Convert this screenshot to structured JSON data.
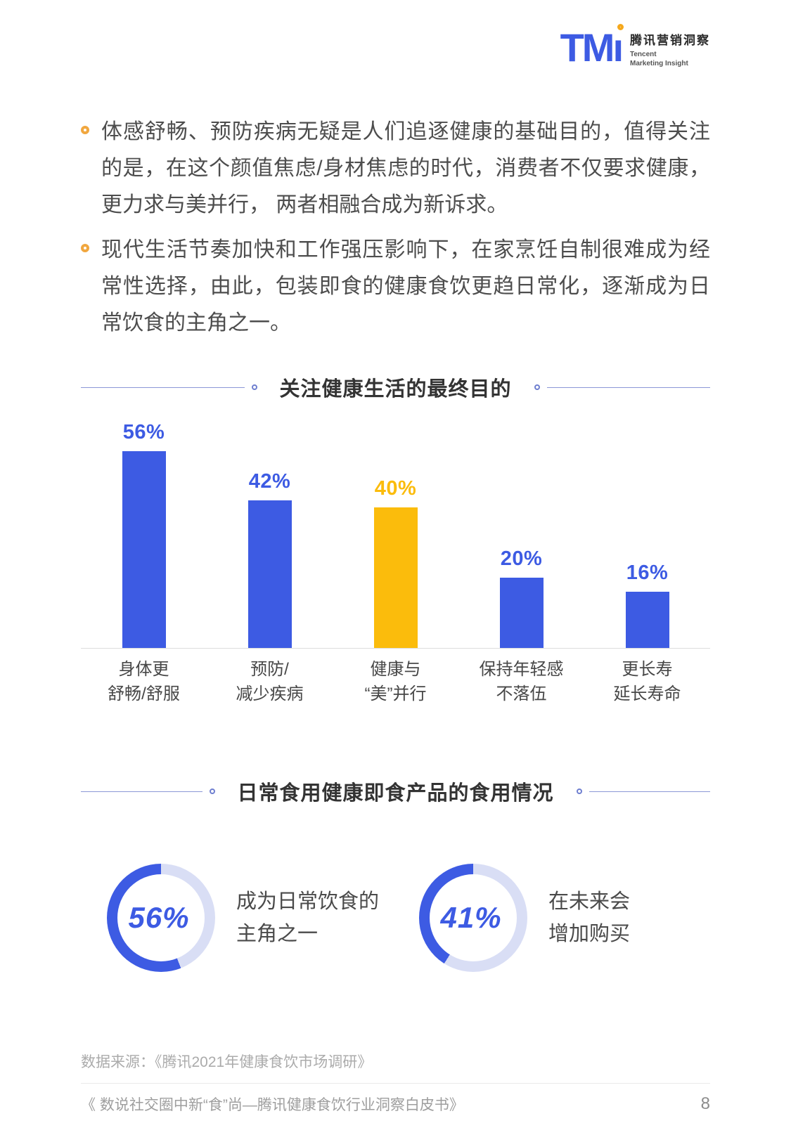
{
  "header": {
    "logo_mark": "TM",
    "logo_i": "ı",
    "brand_cn": "腾讯营销洞察",
    "brand_en_1": "Tencent",
    "brand_en_2": "Marketing Insight"
  },
  "bullets": [
    "体感舒畅、预防疾病无疑是人们追逐健康的基础目的，值得关注的是，在这个颜值焦虑/身材焦虑的时代，消费者不仅要求健康，更力求与美并行， 两者相融合成为新诉求。",
    "现代生活节奏加快和工作强压影响下，在家烹饪自制很难成为经常性选择，由此，包装即食的健康食饮更趋日常化，逐渐成为日常饮食的主角之一。"
  ],
  "colors": {
    "primary_blue": "#3D5BE3",
    "accent_yellow": "#FBBC0C",
    "donut_track": "#D9DEF5",
    "title_line": "#8B97D6",
    "bullet_ring": "#F1A73F"
  },
  "chart_data": [
    {
      "type": "bar",
      "title": "关注健康生活的最终目的",
      "categories": [
        "身体更舒畅/舒服",
        "预防/减少疾病",
        "健康与“美”并行",
        "保持年轻感不落伍",
        "更长寿延长寿命"
      ],
      "category_lines": [
        [
          "身体更",
          "舒畅/舒服"
        ],
        [
          "预防/",
          "减少疾病"
        ],
        [
          "健康与",
          "“美”并行"
        ],
        [
          "保持年轻感",
          "不落伍"
        ],
        [
          "更长寿",
          "延长寿命"
        ]
      ],
      "values": [
        56,
        42,
        40,
        20,
        16
      ],
      "value_labels": [
        "56%",
        "42%",
        "40%",
        "20%",
        "16%"
      ],
      "bar_colors": [
        "#3D5BE3",
        "#3D5BE3",
        "#FBBC0C",
        "#3D5BE3",
        "#3D5BE3"
      ],
      "unit": "%",
      "ylim": [
        0,
        60
      ],
      "grid": false,
      "legend": "none",
      "highlight_index": 2
    },
    {
      "type": "pie",
      "subtype": "two-independent-donuts",
      "title": "日常食用健康即食产品的食用情况",
      "slices": [
        {
          "label": "成为日常饮食的主角之一",
          "label_lines": [
            "成为日常饮食的",
            "主角之一"
          ],
          "value": 56,
          "value_label": "56%"
        },
        {
          "label": "在未来会增加购买",
          "label_lines": [
            "在未来会",
            "增加购买"
          ],
          "value": 41,
          "value_label": "41%"
        }
      ]
    }
  ],
  "footer": {
    "source": "数据来源：《腾讯2021年健康食饮市场调研》",
    "report_title": "《 数说社交圈中新“食”尚—腾讯健康食饮行业洞察白皮书》",
    "page_number": "8"
  }
}
